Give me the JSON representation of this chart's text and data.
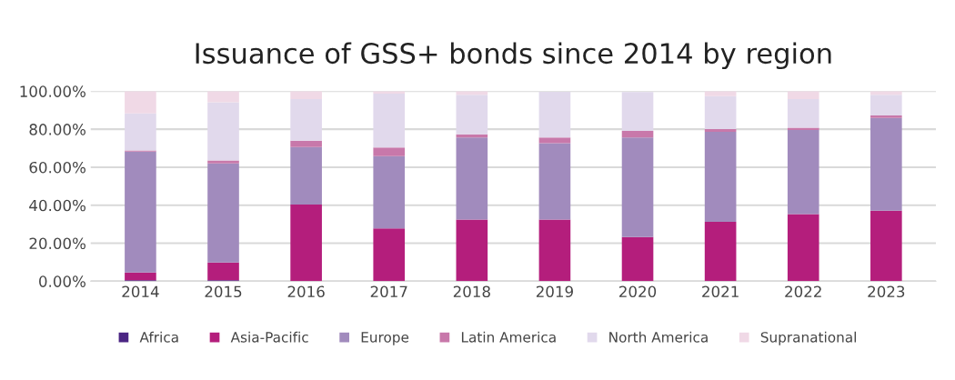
{
  "chart_data": {
    "type": "bar",
    "title": "Issuance of GSS+ bonds since 2014 by region",
    "categories": [
      "2014",
      "2015",
      "2016",
      "2017",
      "2018",
      "2019",
      "2020",
      "2021",
      "2022",
      "2023"
    ],
    "stacked": true,
    "series": [
      {
        "name": "Africa",
        "color": "#4b2583",
        "values": [
          0.5,
          0.5,
          0,
          0,
          0,
          0,
          0,
          0,
          0,
          0
        ]
      },
      {
        "name": "Asia-Pacific",
        "color": "#b41e7c",
        "values": [
          4.1,
          9.4,
          40.4,
          27.8,
          32.4,
          32.4,
          23.2,
          31.3,
          35.3,
          37.1
        ]
      },
      {
        "name": "Europe",
        "color": "#a18bbd",
        "values": [
          63.6,
          52.1,
          30.2,
          38.0,
          43.2,
          40.3,
          52.4,
          47.3,
          44.3,
          48.8
        ]
      },
      {
        "name": "Latin America",
        "color": "#c878aa",
        "values": [
          0.6,
          1.6,
          3.4,
          4.6,
          1.7,
          2.9,
          3.5,
          1.4,
          1.2,
          1.3
        ]
      },
      {
        "name": "North America",
        "color": "#e1d9ec",
        "values": [
          19.5,
          30.6,
          21.8,
          28.3,
          20.8,
          24.1,
          20.4,
          17.4,
          15.0,
          10.9
        ]
      },
      {
        "name": "Supranational",
        "color": "#f0d9e6",
        "values": [
          11.7,
          5.8,
          4.2,
          1.3,
          1.9,
          null,
          null,
          2.6,
          4.2,
          1.9
        ]
      }
    ],
    "ylim": [
      0,
      100
    ],
    "yticks": [
      {
        "value": 0,
        "label": "0.00%"
      },
      {
        "value": 20,
        "label": "20.00%"
      },
      {
        "value": 40,
        "label": "40.00%"
      },
      {
        "value": 60,
        "label": "60.00%"
      },
      {
        "value": 80,
        "label": "80.00%"
      },
      {
        "value": 100,
        "label": "100.00%"
      }
    ],
    "grid": "y",
    "legend": "bottom"
  }
}
